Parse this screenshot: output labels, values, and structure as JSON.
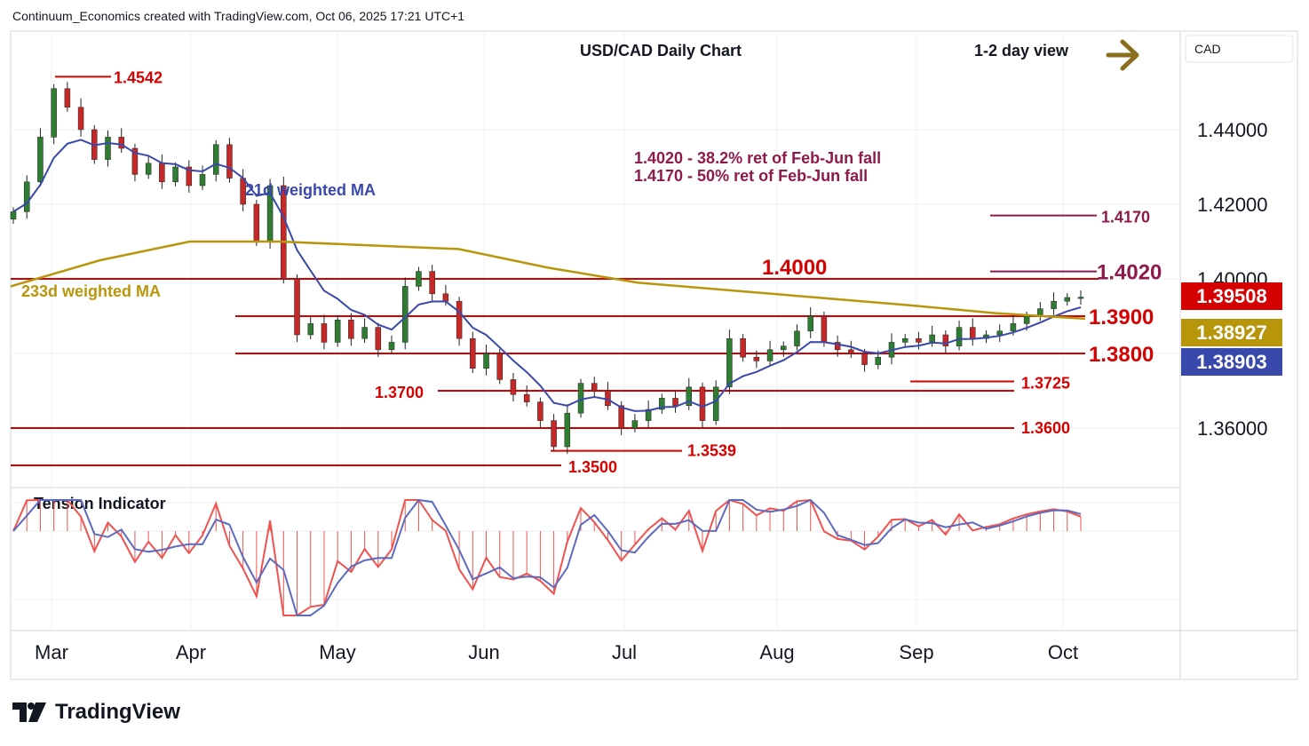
{
  "header": {
    "credit": "Continuum_Economics created with TradingView.com, Oct 06, 2025 17:21 UTC+1"
  },
  "chart_title": "USD/CAD Daily Chart",
  "view": {
    "label": "1-2 day view",
    "arrow_color": "#8b6d1f"
  },
  "currency_box": "CAD",
  "footer": {
    "brand": "TradingView"
  },
  "colors": {
    "up": "#2e7d32",
    "down": "#c62828",
    "level": "#d50000",
    "ma21": "#3949ab",
    "ma233": "#b8960c",
    "fib": "#8e1a4b",
    "indicator_fill": "#ef5350",
    "indicator_line": "#5c6bc0"
  },
  "chart_data": {
    "type": "candlestick",
    "title": "USD/CAD Daily Chart",
    "y_axis": {
      "ticks": [
        "1.44000",
        "1.42000",
        "1.40000",
        "1.36000"
      ],
      "range": [
        1.3465,
        1.448
      ]
    },
    "x_axis": {
      "months": [
        "Mar",
        "Apr",
        "May",
        "Jun",
        "Jul",
        "Aug",
        "Sep",
        "Oct"
      ]
    },
    "price_badges": [
      {
        "value": "1.39508",
        "label": "last",
        "color": "#d50000"
      },
      {
        "value": "1.38927",
        "label": "233d weighted MA",
        "color": "#b8960c"
      },
      {
        "value": "1.38903",
        "label": "21d weighted MA",
        "color": "#3949ab"
      }
    ],
    "levels": [
      {
        "label": "1.4542",
        "value": 1.4542,
        "kind": "high"
      },
      {
        "label": "1.4170",
        "value": 1.417,
        "kind": "fib"
      },
      {
        "label": "1.4020",
        "value": 1.402,
        "kind": "fib"
      },
      {
        "label": "1.4000",
        "value": 1.4,
        "kind": "level"
      },
      {
        "label": "1.3900",
        "value": 1.39,
        "kind": "level"
      },
      {
        "label": "1.3800",
        "value": 1.38,
        "kind": "level"
      },
      {
        "label": "1.3725",
        "value": 1.3725,
        "kind": "low"
      },
      {
        "label": "1.3700",
        "value": 1.37,
        "kind": "level"
      },
      {
        "label": "1.3600",
        "value": 1.36,
        "kind": "level"
      },
      {
        "label": "1.3539",
        "value": 1.3539,
        "kind": "low"
      },
      {
        "label": "1.3500",
        "value": 1.35,
        "kind": "level"
      }
    ],
    "annotations": [
      "1.4020 - 38.2% ret of Feb-Jun fall",
      "1.4170 - 50% ret of Feb-Jun fall"
    ],
    "ma_labels": {
      "ma21": "21d weighted MA",
      "ma233": "233d weighted MA"
    },
    "indicator": {
      "name": "Tension Indicator"
    },
    "close_path": [
      1.418,
      1.426,
      1.438,
      1.451,
      1.446,
      1.44,
      1.432,
      1.438,
      1.435,
      1.428,
      1.431,
      1.426,
      1.43,
      1.425,
      1.428,
      1.436,
      1.427,
      1.42,
      1.41,
      1.425,
      1.4,
      1.385,
      1.388,
      1.383,
      1.389,
      1.384,
      1.387,
      1.381,
      1.383,
      1.398,
      1.402,
      1.396,
      1.394,
      1.384,
      1.376,
      1.38,
      1.373,
      1.369,
      1.367,
      1.362,
      1.355,
      1.364,
      1.372,
      1.37,
      1.366,
      1.36,
      1.362,
      1.365,
      1.368,
      1.366,
      1.371,
      1.362,
      1.371,
      1.384,
      1.379,
      1.378,
      1.381,
      1.382,
      1.386,
      1.39,
      1.383,
      1.381,
      1.38,
      1.377,
      1.379,
      1.383,
      1.384,
      1.383,
      1.385,
      1.382,
      1.387,
      1.384,
      1.385,
      1.386,
      1.388,
      1.39,
      1.392,
      1.394,
      1.395,
      1.3951
    ]
  }
}
